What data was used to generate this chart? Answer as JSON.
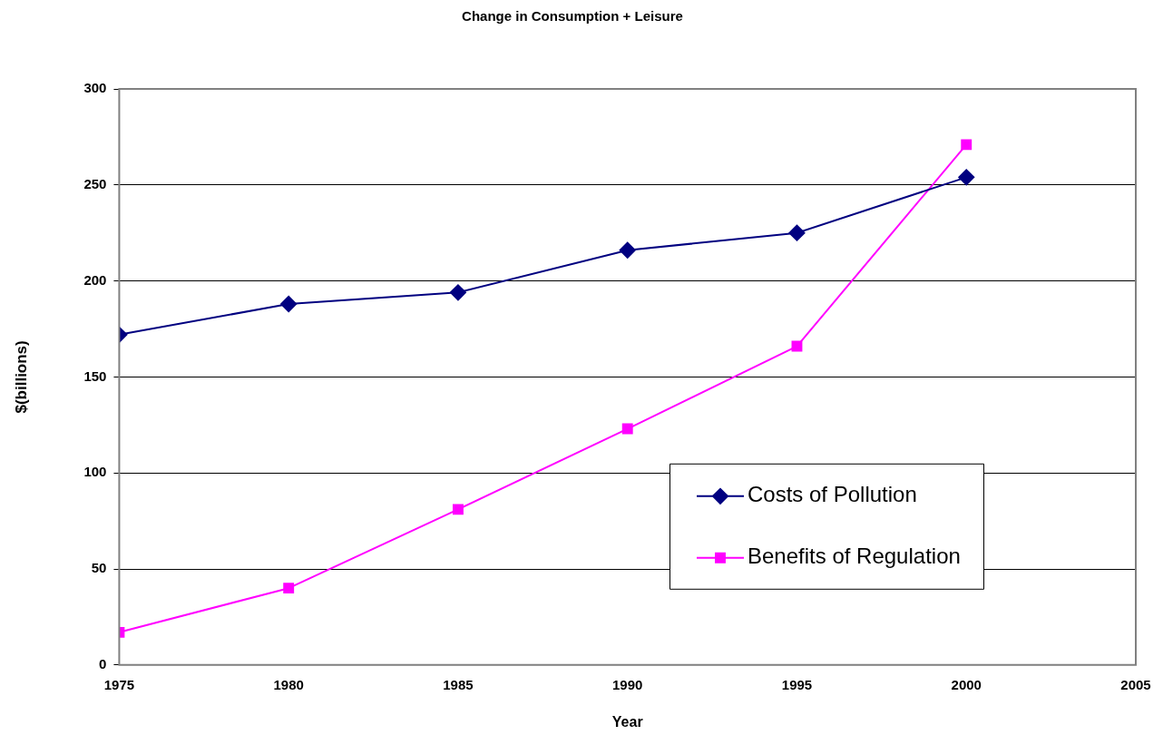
{
  "chart_data": {
    "type": "line",
    "title": "Change in Consumption + Leisure",
    "xlabel": "Year",
    "ylabel": "$(billions)",
    "x": [
      1975,
      1980,
      1985,
      1990,
      1995,
      2000
    ],
    "series": [
      {
        "name": "Costs of Pollution",
        "color": "#000080",
        "marker": "diamond",
        "values": [
          172,
          188,
          194,
          216,
          225,
          254
        ]
      },
      {
        "name": "Benefits of Regulation",
        "color": "#ff00ff",
        "marker": "square",
        "values": [
          17,
          40,
          81,
          123,
          166,
          271
        ]
      }
    ],
    "xlim": [
      1975,
      2005
    ],
    "xticks": [
      1975,
      1980,
      1985,
      1990,
      1995,
      2000,
      2005
    ],
    "ylim": [
      0,
      300
    ],
    "yticks": [
      0,
      50,
      100,
      150,
      200,
      250,
      300
    ],
    "grid": "y",
    "legend": "bottom right",
    "line_style": "solid"
  }
}
